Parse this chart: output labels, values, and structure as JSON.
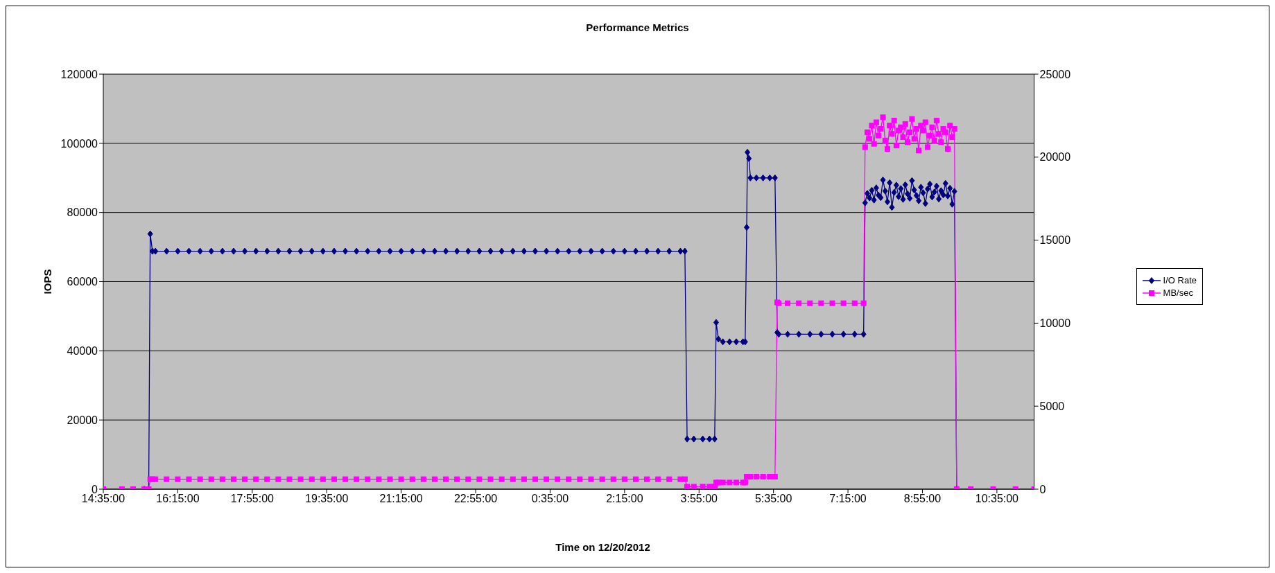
{
  "chart_data": {
    "type": "line",
    "title": "Performance Metrics",
    "xlabel": "Time on 12/20/2012",
    "ylabel": "IOPS",
    "x": [
      "2012-12-19T14:35",
      "2012-12-19T15:00",
      "2012-12-19T15:15",
      "2012-12-19T15:30",
      "2012-12-19T15:36",
      "2012-12-19T15:38",
      "2012-12-19T15:41",
      "2012-12-19T15:45",
      "2012-12-19T16:00",
      "2012-12-19T16:15",
      "2012-12-19T16:30",
      "2012-12-19T16:45",
      "2012-12-19T17:00",
      "2012-12-19T17:15",
      "2012-12-19T17:30",
      "2012-12-19T17:45",
      "2012-12-19T18:00",
      "2012-12-19T18:15",
      "2012-12-19T18:30",
      "2012-12-19T18:45",
      "2012-12-19T19:00",
      "2012-12-19T19:15",
      "2012-12-19T19:30",
      "2012-12-19T19:45",
      "2012-12-19T20:00",
      "2012-12-19T20:15",
      "2012-12-19T20:30",
      "2012-12-19T20:45",
      "2012-12-19T21:00",
      "2012-12-19T21:15",
      "2012-12-19T21:30",
      "2012-12-19T21:45",
      "2012-12-19T22:00",
      "2012-12-19T22:15",
      "2012-12-19T22:30",
      "2012-12-19T22:45",
      "2012-12-19T23:00",
      "2012-12-19T23:15",
      "2012-12-19T23:30",
      "2012-12-19T23:45",
      "2012-12-20T00:00",
      "2012-12-20T00:15",
      "2012-12-20T00:30",
      "2012-12-20T00:45",
      "2012-12-20T01:00",
      "2012-12-20T01:15",
      "2012-12-20T01:30",
      "2012-12-20T01:45",
      "2012-12-20T02:00",
      "2012-12-20T02:15",
      "2012-12-20T02:30",
      "2012-12-20T02:45",
      "2012-12-20T03:00",
      "2012-12-20T03:15",
      "2012-12-20T03:30",
      "2012-12-20T03:36",
      "2012-12-20T03:39",
      "2012-12-20T03:48",
      "2012-12-20T04:00",
      "2012-12-20T04:09",
      "2012-12-20T04:16",
      "2012-12-20T04:18",
      "2012-12-20T04:21",
      "2012-12-20T04:27",
      "2012-12-20T04:36",
      "2012-12-20T04:45",
      "2012-12-20T04:54",
      "2012-12-20T04:57",
      "2012-12-20T04:59",
      "2012-12-20T05:00",
      "2012-12-20T05:02",
      "2012-12-20T05:04",
      "2012-12-20T05:12",
      "2012-12-20T05:21",
      "2012-12-20T05:30",
      "2012-12-20T05:37",
      "2012-12-20T05:40",
      "2012-12-20T05:42",
      "2012-12-20T05:54",
      "2012-12-20T06:09",
      "2012-12-20T06:24",
      "2012-12-20T06:39",
      "2012-12-20T06:54",
      "2012-12-20T07:09",
      "2012-12-20T07:24",
      "2012-12-20T07:36",
      "2012-12-20T07:38",
      "2012-12-20T07:41",
      "2012-12-20T07:44",
      "2012-12-20T07:47",
      "2012-12-20T07:50",
      "2012-12-20T07:53",
      "2012-12-20T07:56",
      "2012-12-20T07:59",
      "2012-12-20T08:02",
      "2012-12-20T08:05",
      "2012-12-20T08:08",
      "2012-12-20T08:11",
      "2012-12-20T08:14",
      "2012-12-20T08:17",
      "2012-12-20T08:20",
      "2012-12-20T08:23",
      "2012-12-20T08:26",
      "2012-12-20T08:29",
      "2012-12-20T08:32",
      "2012-12-20T08:35",
      "2012-12-20T08:38",
      "2012-12-20T08:41",
      "2012-12-20T08:44",
      "2012-12-20T08:47",
      "2012-12-20T08:50",
      "2012-12-20T08:53",
      "2012-12-20T08:56",
      "2012-12-20T08:59",
      "2012-12-20T09:02",
      "2012-12-20T09:05",
      "2012-12-20T09:08",
      "2012-12-20T09:11",
      "2012-12-20T09:14",
      "2012-12-20T09:17",
      "2012-12-20T09:20",
      "2012-12-20T09:23",
      "2012-12-20T09:26",
      "2012-12-20T09:29",
      "2012-12-20T09:32",
      "2012-12-20T09:35",
      "2012-12-20T09:38",
      "2012-12-20T09:41",
      "2012-12-20T10:00",
      "2012-12-20T10:30",
      "2012-12-20T11:00",
      "2012-12-20T11:25"
    ],
    "series": [
      {
        "name": "I/O Rate",
        "color": "#000080",
        "marker": "diamond",
        "values": [
          null,
          null,
          null,
          0,
          0,
          73800,
          68800,
          68800,
          68800,
          68800,
          68800,
          68800,
          68800,
          68800,
          68800,
          68800,
          68800,
          68800,
          68800,
          68800,
          68800,
          68800,
          68800,
          68800,
          68800,
          68800,
          68800,
          68800,
          68800,
          68800,
          68800,
          68800,
          68800,
          68800,
          68800,
          68800,
          68800,
          68800,
          68800,
          68800,
          68800,
          68800,
          68800,
          68800,
          68800,
          68800,
          68800,
          68800,
          68800,
          68800,
          68800,
          68800,
          68800,
          68800,
          68800,
          68800,
          14500,
          14500,
          14500,
          14500,
          14500,
          48200,
          43400,
          42600,
          42600,
          42600,
          42600,
          42600,
          75700,
          97400,
          95600,
          90000,
          90000,
          90000,
          90000,
          90000,
          45300,
          44800,
          44800,
          44800,
          44800,
          44800,
          44800,
          44800,
          44800,
          44800,
          82800,
          85500,
          84200,
          86400,
          83600,
          87100,
          85000,
          84300,
          89400,
          86200,
          83100,
          88600,
          81500,
          85800,
          87900,
          84600,
          86900,
          83800,
          88000,
          85400,
          84100,
          89200,
          86500,
          84900,
          83400,
          87300,
          85700,
          82600,
          86800,
          88200,
          84500,
          85900,
          87600,
          83900,
          86300,
          85100,
          88400,
          84800,
          87000,
          82400,
          86100,
          0,
          null,
          null,
          null,
          null
        ]
      },
      {
        "name": "MB/sec",
        "color": "#ff00ff",
        "marker": "square",
        "axis": "y2",
        "values": [
          0,
          0,
          0,
          0,
          0,
          600,
          600,
          600,
          600,
          600,
          600,
          600,
          600,
          600,
          600,
          600,
          600,
          600,
          600,
          600,
          600,
          600,
          600,
          600,
          600,
          600,
          600,
          600,
          600,
          600,
          600,
          600,
          600,
          600,
          600,
          600,
          600,
          600,
          600,
          600,
          600,
          600,
          600,
          600,
          600,
          600,
          600,
          600,
          600,
          600,
          600,
          600,
          600,
          600,
          600,
          600,
          150,
          150,
          150,
          150,
          150,
          400,
          400,
          400,
          400,
          400,
          400,
          400,
          750,
          750,
          750,
          750,
          750,
          750,
          750,
          750,
          11250,
          11200,
          11200,
          11200,
          11200,
          11200,
          11200,
          11200,
          11200,
          11200,
          20600,
          21500,
          21100,
          21900,
          20800,
          22100,
          21300,
          21700,
          22400,
          21000,
          20500,
          21900,
          21400,
          22200,
          20700,
          21600,
          21800,
          21200,
          22000,
          20900,
          21500,
          22300,
          21100,
          21700,
          20400,
          21900,
          21600,
          22100,
          20600,
          21300,
          21800,
          21000,
          22200,
          21400,
          20900,
          21700,
          21500,
          20500,
          21900,
          21200,
          21700,
          0,
          0,
          0,
          0,
          0
        ]
      }
    ],
    "xlim": [
      "2012-12-19T14:35",
      "2012-12-20T11:25"
    ],
    "xticks": [
      {
        "value": "2012-12-19T14:35",
        "label": "14:35:00"
      },
      {
        "value": "2012-12-19T16:15",
        "label": "16:15:00"
      },
      {
        "value": "2012-12-19T17:55",
        "label": "17:55:00"
      },
      {
        "value": "2012-12-19T19:35",
        "label": "19:35:00"
      },
      {
        "value": "2012-12-19T21:15",
        "label": "21:15:00"
      },
      {
        "value": "2012-12-19T22:55",
        "label": "22:55:00"
      },
      {
        "value": "2012-12-20T00:35",
        "label": "0:35:00"
      },
      {
        "value": "2012-12-20T02:15",
        "label": "2:15:00"
      },
      {
        "value": "2012-12-20T03:55",
        "label": "3:55:00"
      },
      {
        "value": "2012-12-20T05:35",
        "label": "5:35:00"
      },
      {
        "value": "2012-12-20T07:15",
        "label": "7:15:00"
      },
      {
        "value": "2012-12-20T08:55",
        "label": "8:55:00"
      },
      {
        "value": "2012-12-20T10:35",
        "label": "10:35:00"
      }
    ],
    "ylim": [
      0,
      120000
    ],
    "yticks": [
      0,
      20000,
      40000,
      60000,
      80000,
      100000,
      120000
    ],
    "y2lim": [
      0,
      25000
    ],
    "y2ticks": [
      0,
      5000,
      10000,
      15000,
      20000,
      25000
    ],
    "grid": "y",
    "legend": "right",
    "line_style": "solid"
  }
}
